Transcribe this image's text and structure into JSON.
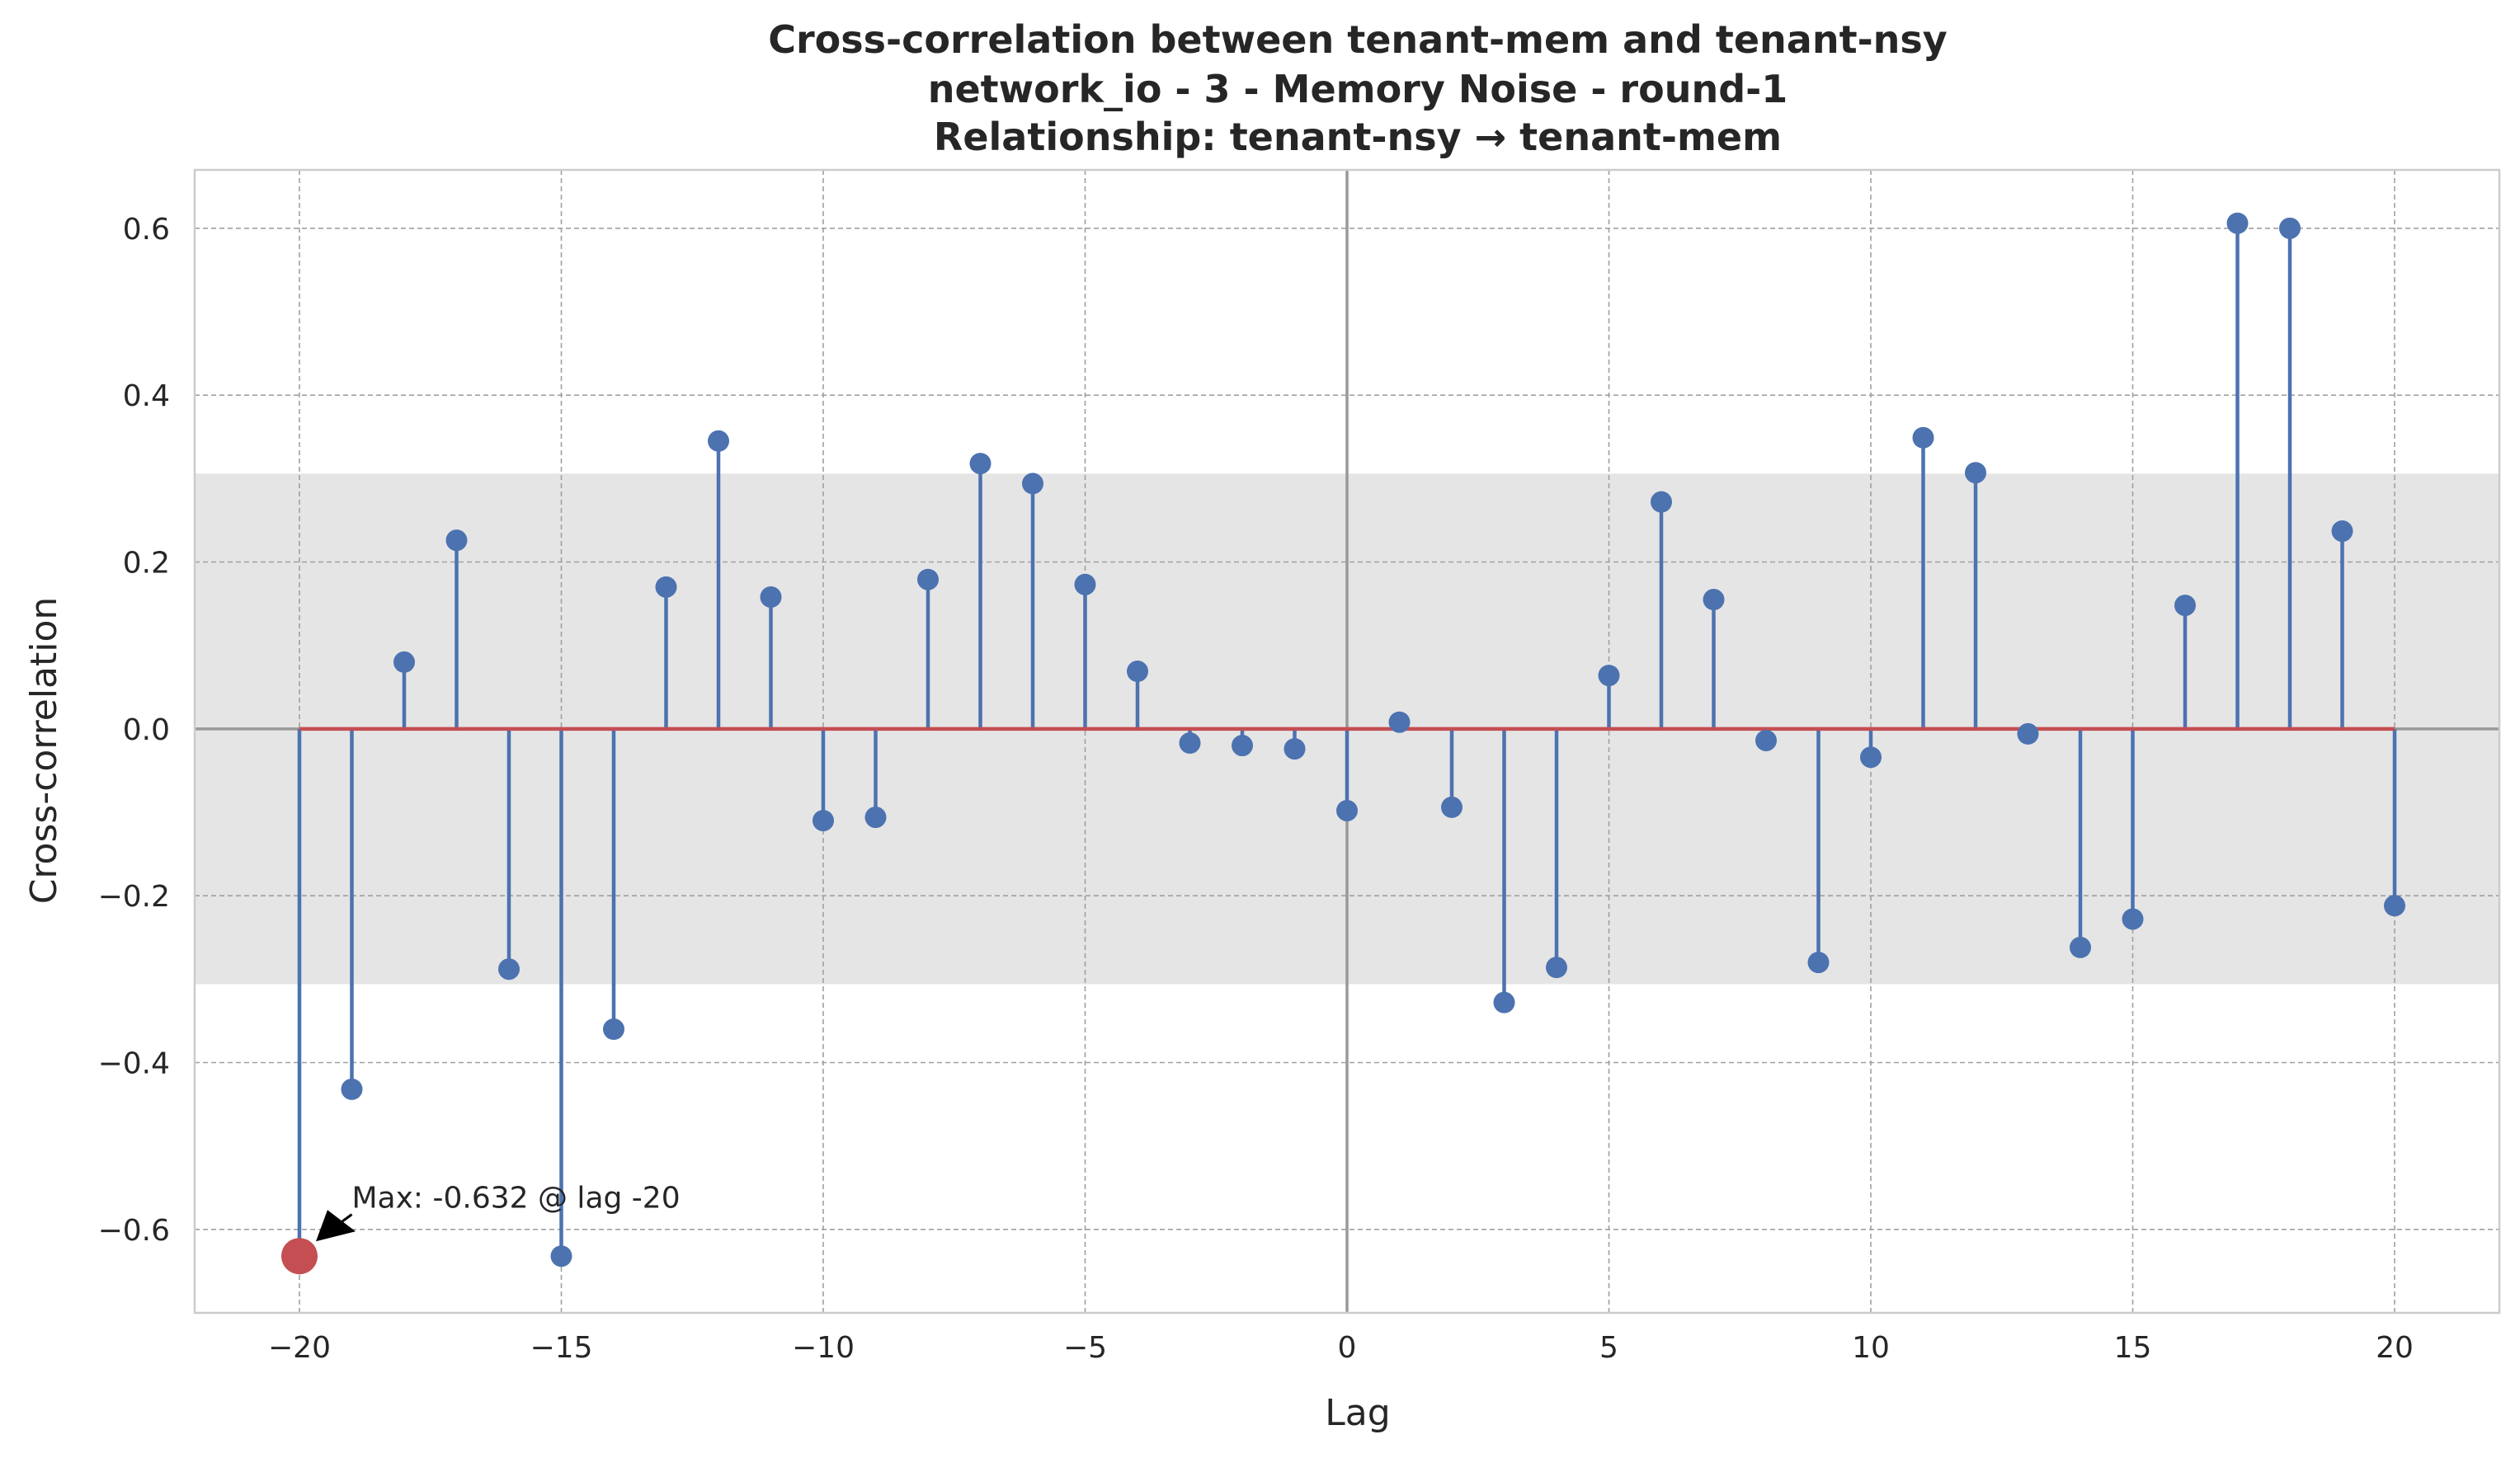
{
  "chart_data": {
    "type": "stem",
    "title_lines": [
      "Cross-correlation between tenant-mem and tenant-nsy",
      "network_io - 3 - Memory Noise - round-1",
      "Relationship: tenant-nsy → tenant-mem"
    ],
    "xlabel": "Lag",
    "ylabel": "Cross-correlation",
    "xlim": [
      -22,
      22
    ],
    "ylim": [
      -0.7,
      0.67
    ],
    "xticks": [
      -20,
      -15,
      -10,
      -5,
      0,
      5,
      10,
      15,
      20
    ],
    "xtick_labels": [
      "−20",
      "−15",
      "−10",
      "−5",
      "0",
      "5",
      "10",
      "15",
      "20"
    ],
    "yticks": [
      -0.6,
      -0.4,
      -0.2,
      0.0,
      0.2,
      0.4,
      0.6
    ],
    "ytick_labels": [
      "−0.6",
      "−0.4",
      "−0.2",
      "0.0",
      "0.2",
      "0.4",
      "0.6"
    ],
    "grid": true,
    "confidence_band": [
      -0.306,
      0.306
    ],
    "x": [
      -20,
      -19,
      -18,
      -17,
      -16,
      -15,
      -14,
      -13,
      -12,
      -11,
      -10,
      -9,
      -8,
      -7,
      -6,
      -5,
      -4,
      -3,
      -2,
      -1,
      0,
      1,
      2,
      3,
      4,
      5,
      6,
      7,
      8,
      9,
      10,
      11,
      12,
      13,
      14,
      15,
      16,
      17,
      18,
      19,
      20
    ],
    "values": [
      -0.632,
      -0.432,
      0.08,
      0.226,
      -0.288,
      -0.632,
      -0.36,
      0.17,
      0.345,
      0.158,
      -0.11,
      -0.106,
      0.179,
      0.318,
      0.294,
      0.173,
      0.069,
      -0.017,
      -0.02,
      -0.024,
      -0.098,
      0.008,
      -0.094,
      -0.328,
      -0.286,
      0.064,
      0.272,
      0.155,
      -0.014,
      -0.28,
      -0.034,
      0.349,
      0.307,
      -0.006,
      -0.262,
      -0.228,
      0.148,
      0.606,
      0.6,
      0.237,
      -0.212
    ],
    "max_point": {
      "lag": -20,
      "value": -0.632
    },
    "annotation_text": "Max: -0.632 @ lag -20",
    "colors": {
      "stem": "#4c72b0",
      "baseline": "#c44e52",
      "max_marker": "#c44e52",
      "band": "#e5e5e5",
      "zero_line": "#999999",
      "grid": "#a0a0a0"
    }
  }
}
